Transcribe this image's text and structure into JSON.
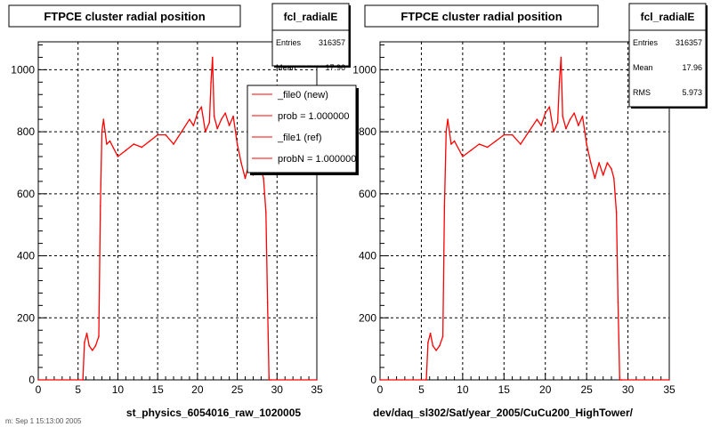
{
  "footer_text": "m: Sep  1 15:13:00 2005",
  "chart_data": [
    {
      "type": "line",
      "title": "FTPCE cluster radial position",
      "xlabel": "st_physics_6054016_raw_1020005",
      "ylabel": "",
      "xlim": [
        0,
        35
      ],
      "ylim": [
        0,
        1090
      ],
      "xticks": [
        "0",
        "5",
        "10",
        "15",
        "20",
        "25",
        "30",
        "35"
      ],
      "yticks": [
        "0",
        "200",
        "400",
        "600",
        "800",
        "1000"
      ],
      "grid": true,
      "stats": {
        "name": "fcl_radialE",
        "entries_label": "Entries",
        "entries": "316357",
        "mean_label": "Mean",
        "mean": "17.96"
      },
      "legend": {
        "placement": "top-right",
        "entries": [
          "_file0 (new)",
          "prob = 1.000000",
          "_file1 (ref)",
          "probN = 1.000000"
        ]
      },
      "series": [
        {
          "color": "#ff0000",
          "x": [
            0,
            5.6,
            5.8,
            6.1,
            6.4,
            6.8,
            7.2,
            7.6,
            7.8,
            8.0,
            8.2,
            8.6,
            9,
            10,
            11,
            12,
            13,
            14,
            15,
            16,
            17,
            18,
            19,
            19.5,
            20,
            20.5,
            21,
            21.5,
            21.7,
            21.9,
            22.1,
            22.5,
            23,
            23.5,
            24,
            24.5,
            25,
            25.5,
            26,
            26.5,
            27,
            27.5,
            28,
            28.3,
            28.6,
            28.8,
            29,
            29.2,
            35
          ],
          "y": [
            0,
            0,
            120,
            150,
            110,
            95,
            110,
            140,
            560,
            800,
            840,
            760,
            770,
            720,
            740,
            760,
            750,
            770,
            790,
            790,
            760,
            800,
            840,
            820,
            860,
            880,
            800,
            830,
            960,
            1040,
            850,
            810,
            840,
            860,
            820,
            850,
            760,
            700,
            650,
            700,
            660,
            700,
            680,
            650,
            540,
            250,
            0,
            0,
            0
          ]
        }
      ]
    },
    {
      "type": "line",
      "title": "FTPCE cluster radial position",
      "xlabel": "dev/daq_sl302/Sat/year_2005/CuCu200_HighTower/",
      "ylabel": "",
      "xlim": [
        0,
        35
      ],
      "ylim": [
        0,
        1090
      ],
      "xticks": [
        "0",
        "5",
        "10",
        "15",
        "20",
        "25",
        "30",
        "35"
      ],
      "yticks": [
        "0",
        "200",
        "400",
        "600",
        "800",
        "1000"
      ],
      "grid": true,
      "stats": {
        "name": "fcl_radialE",
        "entries_label": "Entries",
        "entries": "316357",
        "mean_label": "Mean",
        "mean": "17.96",
        "rms_label": "RMS",
        "rms": "5.973"
      },
      "series": [
        {
          "color": "#ff0000",
          "x": [
            0,
            5.6,
            5.8,
            6.1,
            6.4,
            6.8,
            7.2,
            7.6,
            7.8,
            8.0,
            8.2,
            8.6,
            9,
            10,
            11,
            12,
            13,
            14,
            15,
            16,
            17,
            18,
            19,
            19.5,
            20,
            20.5,
            21,
            21.5,
            21.7,
            21.9,
            22.1,
            22.5,
            23,
            23.5,
            24,
            24.5,
            25,
            25.5,
            26,
            26.5,
            27,
            27.5,
            28,
            28.3,
            28.6,
            28.8,
            29,
            29.2,
            35
          ],
          "y": [
            0,
            0,
            120,
            150,
            110,
            95,
            110,
            140,
            560,
            800,
            840,
            760,
            770,
            720,
            740,
            760,
            750,
            770,
            790,
            790,
            760,
            800,
            840,
            820,
            860,
            880,
            800,
            830,
            960,
            1040,
            850,
            810,
            840,
            860,
            820,
            850,
            760,
            700,
            650,
            700,
            660,
            700,
            680,
            650,
            540,
            250,
            0,
            0,
            0
          ]
        }
      ]
    }
  ]
}
